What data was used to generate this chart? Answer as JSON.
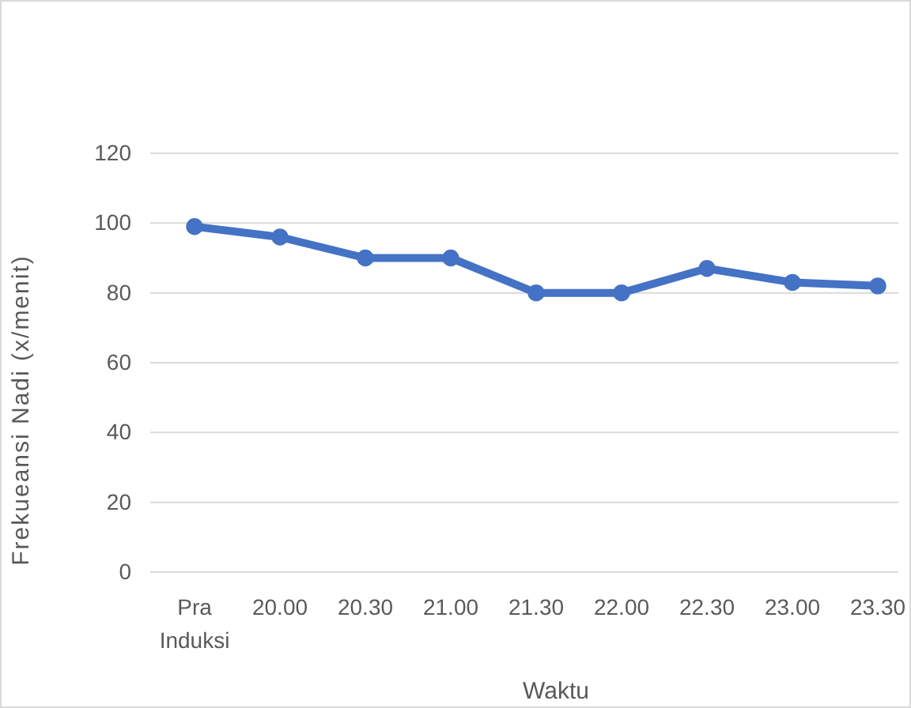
{
  "chart_data": {
    "type": "line",
    "xlabel": "Waktu",
    "ylabel": "Frekueansi Nadi (x/menit)",
    "categories": [
      "Pra Induksi",
      "20.00",
      "20.30",
      "21.00",
      "21.30",
      "22.00",
      "22.30",
      "23.00",
      "23.30"
    ],
    "series": [
      {
        "color": "#4472c4",
        "values": [
          99,
          96,
          90,
          90,
          80,
          80,
          87,
          83,
          82
        ]
      }
    ],
    "ylim": [
      0,
      120
    ],
    "yticks": [
      0,
      20,
      40,
      60,
      80,
      100,
      120
    ],
    "grid": "y",
    "marker": "circle",
    "line_style": "solid"
  }
}
